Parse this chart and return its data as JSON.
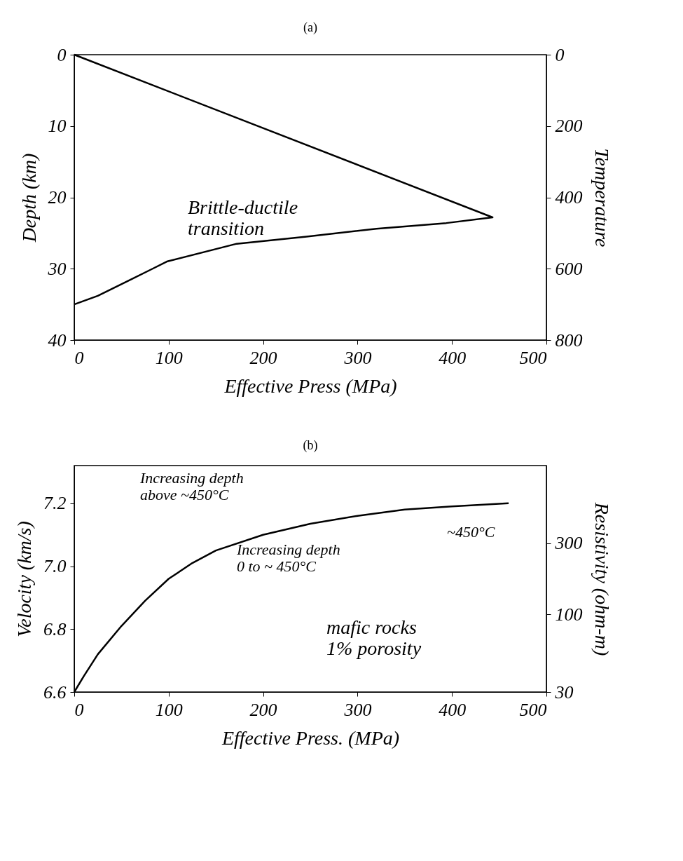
{
  "chart_data": [
    {
      "type": "line",
      "title": "(a)",
      "xlabel": "Effective Press (MPa)",
      "ylabel": "Depth (km)",
      "y2label": "Temperature",
      "series": [
        {
          "color": "#000000",
          "x": [
            0,
            443,
            394,
            320,
            246,
            172,
            98,
            83,
            60,
            25,
            0
          ],
          "values": [
            0,
            22.8,
            23.6,
            24.4,
            25.5,
            26.5,
            29,
            30,
            31.5,
            33.8,
            35
          ]
        }
      ],
      "xlim": [
        0,
        500
      ],
      "xticks": [
        0,
        100,
        200,
        300,
        400,
        500
      ],
      "ylim": [
        40,
        0
      ],
      "yticks": [
        0,
        10,
        20,
        30,
        40
      ],
      "y2lim": [
        800,
        0
      ],
      "y2ticks": [
        0,
        200,
        400,
        600,
        800
      ],
      "annotations": [
        "Brittle-ductile\ntransition"
      ]
    },
    {
      "type": "line",
      "title": "(b)",
      "xlabel": "Effective Press. (MPa)",
      "ylabel": "Velocity (km/s)",
      "y2label": "Resistivity (ohm-m)",
      "series": [
        {
          "color": "#000000",
          "x": [
            0,
            10,
            25,
            50,
            75,
            100,
            125,
            150,
            200,
            250,
            300,
            350,
            400,
            460
          ],
          "values": [
            6.6,
            6.65,
            6.72,
            6.81,
            6.89,
            6.96,
            7.01,
            7.05,
            7.1,
            7.135,
            7.16,
            7.18,
            7.19,
            7.2
          ]
        }
      ],
      "xlim": [
        0,
        500
      ],
      "xticks": [
        0,
        100,
        200,
        300,
        400,
        500
      ],
      "ylim": [
        6.6,
        7.32
      ],
      "yticks": [
        6.6,
        {
          "value": 6.8,
          "label": "6.8"
        },
        {
          "value": 7,
          "label": "7.0"
        },
        7.2
      ],
      "y2lim": [
        30,
        1000
      ],
      "y2ticks": [
        30,
        100,
        300
      ],
      "log": "y2",
      "annotations": [
        "Increasing depth\nabove ~450°C",
        "Increasing depth\n0 to ~ 450°C",
        "~450°C",
        "mafic rocks\n1% porosity"
      ]
    }
  ]
}
